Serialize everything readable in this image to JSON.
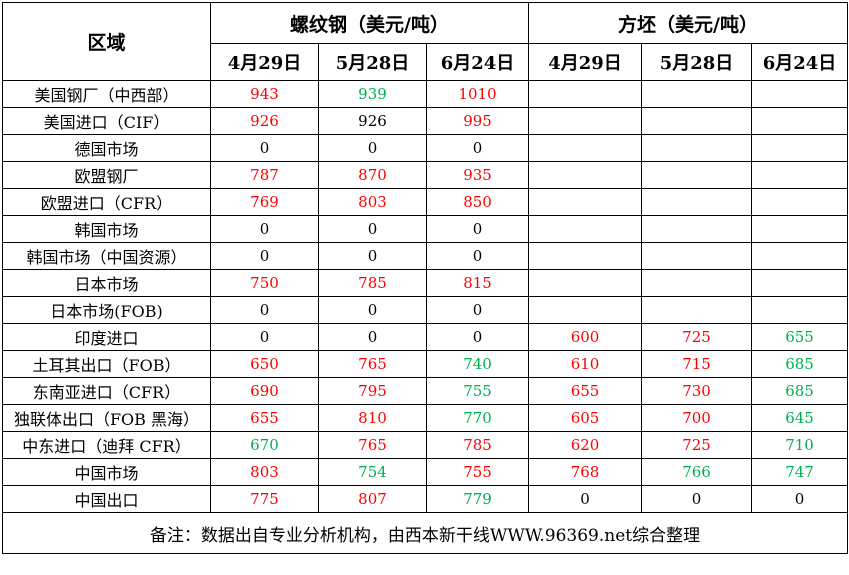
{
  "header": {
    "region_label": "区域",
    "rebar_label": "螺纹钢（美元/吨）",
    "billet_label": "方坯（美元/吨）",
    "dates": [
      "4月29日",
      "5月28日",
      "6月24日"
    ]
  },
  "colors": {
    "r": "#ff0000",
    "g": "#00b050",
    "k": "#000000"
  },
  "rows": [
    {
      "region": "美国钢厂（中西部）",
      "rebar": [
        {
          "v": "943",
          "c": "r"
        },
        {
          "v": "939",
          "c": "g"
        },
        {
          "v": "1010",
          "c": "r"
        }
      ],
      "billet": [
        {
          "v": "",
          "c": "k"
        },
        {
          "v": "",
          "c": "k"
        },
        {
          "v": "",
          "c": "k"
        }
      ]
    },
    {
      "region": "美国进口（CIF）",
      "rebar": [
        {
          "v": "926",
          "c": "r"
        },
        {
          "v": "926",
          "c": "k"
        },
        {
          "v": "995",
          "c": "r"
        }
      ],
      "billet": [
        {
          "v": "",
          "c": "k"
        },
        {
          "v": "",
          "c": "k"
        },
        {
          "v": "",
          "c": "k"
        }
      ]
    },
    {
      "region": "德国市场",
      "rebar": [
        {
          "v": "0",
          "c": "k"
        },
        {
          "v": "0",
          "c": "k"
        },
        {
          "v": "0",
          "c": "k"
        }
      ],
      "billet": [
        {
          "v": "",
          "c": "k"
        },
        {
          "v": "",
          "c": "k"
        },
        {
          "v": "",
          "c": "k"
        }
      ]
    },
    {
      "region": "欧盟钢厂",
      "rebar": [
        {
          "v": "787",
          "c": "r"
        },
        {
          "v": "870",
          "c": "r"
        },
        {
          "v": "935",
          "c": "r"
        }
      ],
      "billet": [
        {
          "v": "",
          "c": "k"
        },
        {
          "v": "",
          "c": "k"
        },
        {
          "v": "",
          "c": "k"
        }
      ]
    },
    {
      "region": "欧盟进口（CFR）",
      "rebar": [
        {
          "v": "769",
          "c": "r"
        },
        {
          "v": "803",
          "c": "r"
        },
        {
          "v": "850",
          "c": "r"
        }
      ],
      "billet": [
        {
          "v": "",
          "c": "k"
        },
        {
          "v": "",
          "c": "k"
        },
        {
          "v": "",
          "c": "k"
        }
      ]
    },
    {
      "region": "韩国市场",
      "rebar": [
        {
          "v": "0",
          "c": "k"
        },
        {
          "v": "0",
          "c": "k"
        },
        {
          "v": "0",
          "c": "k"
        }
      ],
      "billet": [
        {
          "v": "",
          "c": "k"
        },
        {
          "v": "",
          "c": "k"
        },
        {
          "v": "",
          "c": "k"
        }
      ]
    },
    {
      "region": "韩国市场（中国资源）",
      "rebar": [
        {
          "v": "0",
          "c": "k"
        },
        {
          "v": "0",
          "c": "k"
        },
        {
          "v": "0",
          "c": "k"
        }
      ],
      "billet": [
        {
          "v": "",
          "c": "k"
        },
        {
          "v": "",
          "c": "k"
        },
        {
          "v": "",
          "c": "k"
        }
      ]
    },
    {
      "region": "日本市场",
      "rebar": [
        {
          "v": "750",
          "c": "r"
        },
        {
          "v": "785",
          "c": "r"
        },
        {
          "v": "815",
          "c": "r"
        }
      ],
      "billet": [
        {
          "v": "",
          "c": "k"
        },
        {
          "v": "",
          "c": "k"
        },
        {
          "v": "",
          "c": "k"
        }
      ]
    },
    {
      "region": "日本市场(FOB)",
      "rebar": [
        {
          "v": "0",
          "c": "k"
        },
        {
          "v": "0",
          "c": "k"
        },
        {
          "v": "0",
          "c": "k"
        }
      ],
      "billet": [
        {
          "v": "",
          "c": "k"
        },
        {
          "v": "",
          "c": "k"
        },
        {
          "v": "",
          "c": "k"
        }
      ]
    },
    {
      "region": "印度进口",
      "rebar": [
        {
          "v": "0",
          "c": "k"
        },
        {
          "v": "0",
          "c": "k"
        },
        {
          "v": "0",
          "c": "k"
        }
      ],
      "billet": [
        {
          "v": "600",
          "c": "r"
        },
        {
          "v": "725",
          "c": "r"
        },
        {
          "v": "655",
          "c": "g"
        }
      ]
    },
    {
      "region": "土耳其出口（FOB）",
      "rebar": [
        {
          "v": "650",
          "c": "r"
        },
        {
          "v": "765",
          "c": "r"
        },
        {
          "v": "740",
          "c": "g"
        }
      ],
      "billet": [
        {
          "v": "610",
          "c": "r"
        },
        {
          "v": "715",
          "c": "r"
        },
        {
          "v": "685",
          "c": "g"
        }
      ]
    },
    {
      "region": "东南亚进口（CFR）",
      "rebar": [
        {
          "v": "690",
          "c": "r"
        },
        {
          "v": "795",
          "c": "r"
        },
        {
          "v": "755",
          "c": "g"
        }
      ],
      "billet": [
        {
          "v": "655",
          "c": "r"
        },
        {
          "v": "730",
          "c": "r"
        },
        {
          "v": "685",
          "c": "g"
        }
      ]
    },
    {
      "region": "独联体出口（FOB 黑海）",
      "rebar": [
        {
          "v": "655",
          "c": "r"
        },
        {
          "v": "810",
          "c": "r"
        },
        {
          "v": "770",
          "c": "g"
        }
      ],
      "billet": [
        {
          "v": "605",
          "c": "r"
        },
        {
          "v": "700",
          "c": "r"
        },
        {
          "v": "645",
          "c": "g"
        }
      ]
    },
    {
      "region": "中东进口（迪拜 CFR）",
      "rebar": [
        {
          "v": "670",
          "c": "g"
        },
        {
          "v": "765",
          "c": "r"
        },
        {
          "v": "785",
          "c": "r"
        }
      ],
      "billet": [
        {
          "v": "620",
          "c": "r"
        },
        {
          "v": "725",
          "c": "r"
        },
        {
          "v": "710",
          "c": "g"
        }
      ]
    },
    {
      "region": "中国市场",
      "rebar": [
        {
          "v": "803",
          "c": "r"
        },
        {
          "v": "754",
          "c": "g"
        },
        {
          "v": "755",
          "c": "r"
        }
      ],
      "billet": [
        {
          "v": "768",
          "c": "r"
        },
        {
          "v": "766",
          "c": "g"
        },
        {
          "v": "747",
          "c": "g"
        }
      ]
    },
    {
      "region": "中国出口",
      "rebar": [
        {
          "v": "775",
          "c": "r"
        },
        {
          "v": "807",
          "c": "r"
        },
        {
          "v": "779",
          "c": "g"
        }
      ],
      "billet": [
        {
          "v": "0",
          "c": "k"
        },
        {
          "v": "0",
          "c": "k"
        },
        {
          "v": "0",
          "c": "k"
        }
      ]
    }
  ],
  "note": "备注：数据出自专业分析机构，由西本新干线WWW.96369.net综合整理"
}
